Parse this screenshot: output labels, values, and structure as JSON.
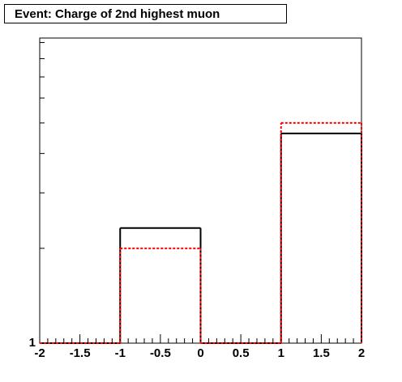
{
  "chart_data": {
    "type": "histogram",
    "title": "Event: Charge of 2nd highest muon",
    "bins": [
      -2,
      -1,
      0,
      1,
      2
    ],
    "series": [
      {
        "color": "#000000",
        "line_style": "solid",
        "values": [
          0,
          2.32,
          0,
          4.63
        ]
      },
      {
        "color": "#ff0000",
        "line_style": "dashed",
        "values": [
          0,
          2,
          0,
          5
        ]
      }
    ],
    "xlim": [
      -2,
      2
    ],
    "xticks": [
      -2,
      -1.5,
      -1,
      -0.5,
      0,
      0.5,
      1,
      1.5,
      2
    ],
    "ylim": [
      1,
      9.3
    ],
    "yticks": [
      1
    ],
    "yminor": [
      2,
      3,
      4,
      5,
      6,
      7,
      8,
      9
    ],
    "log_y": true
  }
}
